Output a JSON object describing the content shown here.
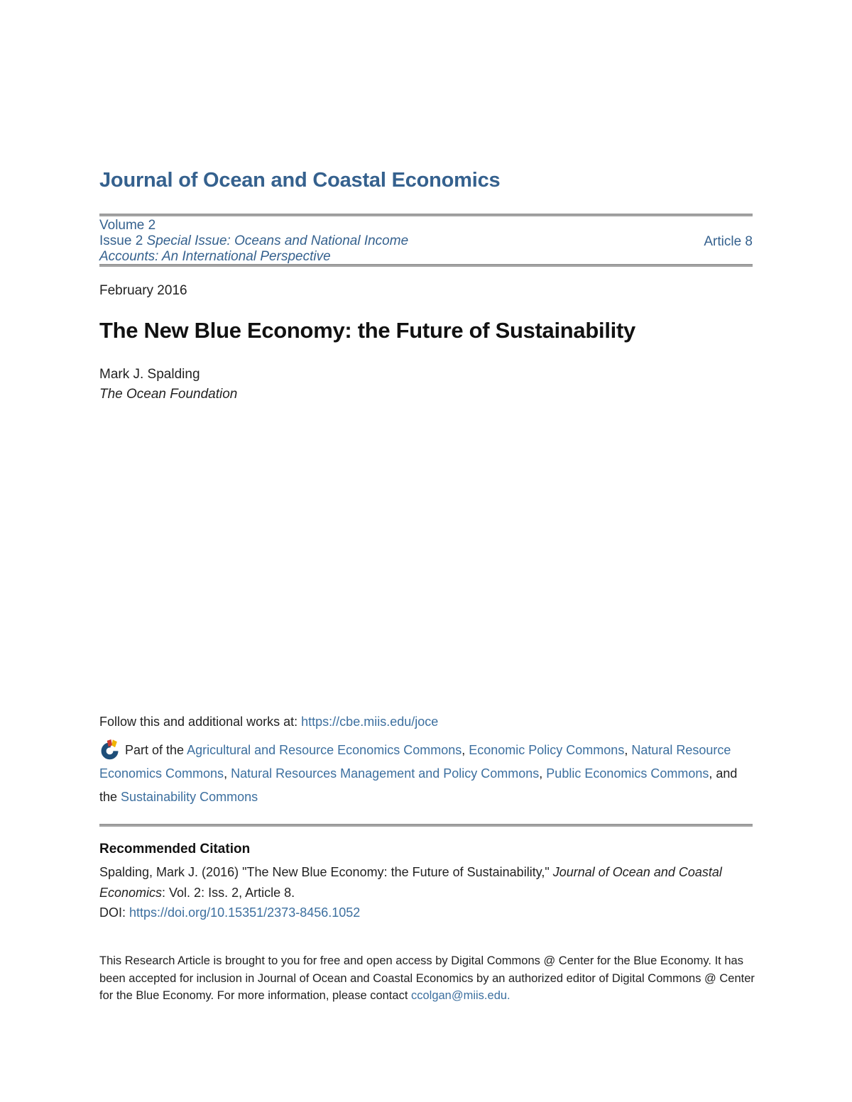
{
  "colors": {
    "brand_blue": "#35618e",
    "link_blue": "#3c6f9f",
    "rule_gray": "#a3a3a3",
    "logo_blue": "#1e4e79",
    "logo_red": "#cc3a2f",
    "logo_yellow": "#f0b400"
  },
  "journal": {
    "title": "Journal of Ocean and Coastal Economics"
  },
  "masthead": {
    "volume": "Volume 2",
    "issue_prefix": "Issue 2 ",
    "issue_title_italic": "Special Issue: Oceans and National Income Accounts: An International Perspective",
    "article_label": "Article 8"
  },
  "article": {
    "date": "February 2016",
    "title": "The New Blue Economy: the Future of Sustainability",
    "author": "Mark J. Spalding",
    "affiliation": "The Ocean Foundation"
  },
  "follow": {
    "prefix": "Follow this and additional works at: ",
    "link_text": "https://cbe.miis.edu/joce"
  },
  "part_of": {
    "icon": "digital-commons-network-icon",
    "prefix": "Part of the ",
    "separator": ", ",
    "last_separator": ", and the ",
    "links": [
      "Agricultural and Resource Economics Commons",
      "Economic Policy Commons",
      "Natural Resource Economics Commons",
      "Natural Resources Management and Policy Commons",
      "Public Economics Commons",
      "Sustainability Commons"
    ]
  },
  "citation": {
    "heading": "Recommended Citation",
    "text_before": "Spalding, Mark J. (2016) \"The New Blue Economy: the Future of Sustainability,\" ",
    "text_italic": "Journal of Ocean and Coastal Economics",
    "text_after": ": Vol. 2: Iss. 2, Article 8.",
    "doi_label": "DOI: ",
    "doi_link": "https://doi.org/10.15351/2373-8456.1052"
  },
  "footer": {
    "text_before_email": "This Research Article is brought to you for free and open access by Digital Commons @ Center for the Blue Economy. It has been accepted for inclusion in Journal of Ocean and Coastal Economics by an authorized editor of Digital Commons @ Center for the Blue Economy. For more information, please contact ",
    "email_link": "ccolgan@miis.edu."
  }
}
